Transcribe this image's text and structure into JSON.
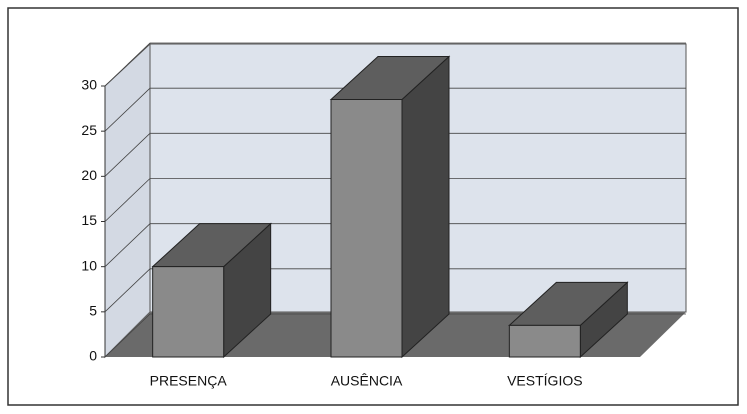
{
  "chart_data": {
    "type": "bar3d",
    "categories": [
      "PRESENÇA",
      "AUSÊNCIA",
      "VESTÍGIOS"
    ],
    "values": [
      10,
      28.5,
      3.5
    ],
    "color": "#8a8a8a",
    "ylim": [
      0,
      30
    ],
    "yticks": [
      0,
      5,
      10,
      15,
      20,
      25,
      30
    ],
    "grid": true
  }
}
